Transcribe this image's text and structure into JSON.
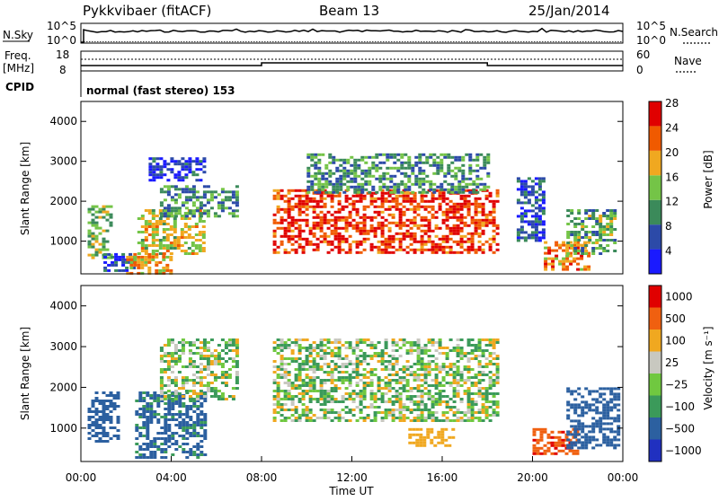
{
  "header": {
    "radar": "Pykkvibaer (fitACF)",
    "beam": "Beam 13",
    "date": "25/Jan/2014"
  },
  "status_panels": {
    "nsky_label": "N.Sky",
    "nsearch_label": "N.Search",
    "freq_label_line1": "Freq.",
    "freq_label_line2": "[MHz]",
    "nave_label": "Nave",
    "cpid_label": "CPID",
    "cpid_text": "normal (fast stereo) 153",
    "noise_ticks_left": [
      "10^5",
      "10^0"
    ],
    "noise_ticks_right": [
      "10^5",
      "10^0"
    ],
    "freq_ticks": [
      "18",
      "8"
    ],
    "nave_ticks": [
      "60",
      "0"
    ]
  },
  "chart_data": [
    {
      "type": "heatmap",
      "name": "power",
      "ylabel": "Slant Range [km]",
      "ylim": [
        180,
        4500
      ],
      "yticks": [
        1000,
        2000,
        3000,
        4000
      ],
      "xlim": [
        0,
        24
      ],
      "colorbar_label": "Power [dB]",
      "colorbar_ticks": [
        "4",
        "8",
        "12",
        "16",
        "20",
        "24",
        "28"
      ],
      "colorbar_colors": [
        "#1a1aff",
        "#2c4aa8",
        "#3b8a5a",
        "#74c447",
        "#f0a820",
        "#f05a00",
        "#e00000"
      ],
      "scatter_regions": [
        {
          "x0": 0.3,
          "x1": 1.3,
          "y0": 600,
          "y1": 1900,
          "val": 15
        },
        {
          "x0": 1.0,
          "x1": 2.3,
          "y0": 250,
          "y1": 700,
          "val": 8
        },
        {
          "x0": 2.0,
          "x1": 4.0,
          "y0": 200,
          "y1": 700,
          "val": 20
        },
        {
          "x0": 2.5,
          "x1": 5.5,
          "y0": 700,
          "y1": 1800,
          "val": 18
        },
        {
          "x0": 3.5,
          "x1": 7.0,
          "y0": 1600,
          "y1": 2400,
          "val": 12
        },
        {
          "x0": 3.0,
          "x1": 5.5,
          "y0": 2500,
          "y1": 3100,
          "val": 6
        },
        {
          "x0": 8.5,
          "x1": 18.5,
          "y0": 700,
          "y1": 2300,
          "val": 26
        },
        {
          "x0": 10.0,
          "x1": 18.0,
          "y0": 2200,
          "y1": 3200,
          "val": 12
        },
        {
          "x0": 19.3,
          "x1": 20.5,
          "y0": 1000,
          "y1": 2600,
          "val": 8
        },
        {
          "x0": 20.5,
          "x1": 22.5,
          "y0": 300,
          "y1": 1000,
          "val": 22
        },
        {
          "x0": 21.5,
          "x1": 23.7,
          "y0": 700,
          "y1": 1800,
          "val": 14
        }
      ]
    },
    {
      "type": "heatmap",
      "name": "velocity",
      "ylabel": "Slant Range [km]",
      "ylim": [
        180,
        4500
      ],
      "yticks": [
        1000,
        2000,
        3000,
        4000
      ],
      "xlim": [
        0,
        24
      ],
      "xticks": [
        "00:00",
        "04:00",
        "08:00",
        "12:00",
        "16:00",
        "20:00",
        "00:00"
      ],
      "xlabel": "Time UT",
      "colorbar_label": "Velocity [m s⁻¹]",
      "colorbar_ticks": [
        "1000",
        "500",
        "100",
        "25",
        "−25",
        "−100",
        "−500",
        "−1000"
      ],
      "colorbar_colors": [
        "#2030c0",
        "#2c60a0",
        "#3b9a5a",
        "#70c840",
        "#c8c8c0",
        "#f0a820",
        "#f06010",
        "#e00000"
      ],
      "scatter_regions": [
        {
          "x0": 0.3,
          "x1": 1.6,
          "y0": 700,
          "y1": 1900,
          "val": -250
        },
        {
          "x0": 2.4,
          "x1": 5.5,
          "y0": 300,
          "y1": 1900,
          "val": -150
        },
        {
          "x0": 3.5,
          "x1": 7.0,
          "y0": 1700,
          "y1": 3200,
          "val": 0
        },
        {
          "x0": 8.5,
          "x1": 18.5,
          "y0": 1200,
          "y1": 3200,
          "val": 0
        },
        {
          "x0": 14.5,
          "x1": 16.5,
          "y0": 600,
          "y1": 1000,
          "val": 200
        },
        {
          "x0": 20.0,
          "x1": 22.0,
          "y0": 400,
          "y1": 1000,
          "val": 700
        },
        {
          "x0": 21.5,
          "x1": 23.8,
          "y0": 500,
          "y1": 2000,
          "val": -400
        }
      ]
    }
  ]
}
